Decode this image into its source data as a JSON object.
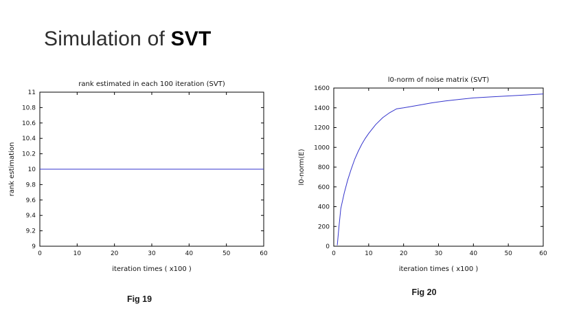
{
  "slide": {
    "title_regular": "Simulation of ",
    "title_bold": "SVT",
    "background": "#ffffff"
  },
  "figures": [
    {
      "caption": "Fig 19"
    },
    {
      "caption": "Fig 20"
    }
  ],
  "chart_data": [
    {
      "type": "line",
      "title": "rank estimated in each 100 iteration (SVT)",
      "xlabel": "iteration times ( x100 )",
      "ylabel": "rank estimation",
      "xlim": [
        0,
        60
      ],
      "ylim": [
        9,
        11
      ],
      "xticks": [
        0,
        10,
        20,
        30,
        40,
        50,
        60
      ],
      "xtick_labels": [
        "0",
        "10",
        "20",
        "30",
        "40",
        "50",
        "60"
      ],
      "yticks": [
        9,
        9.2,
        9.4,
        9.6,
        9.8,
        10,
        10.2,
        10.4,
        10.6,
        10.8,
        11
      ],
      "ytick_labels": [
        "9",
        "9.2",
        "9.4",
        "9.6",
        "9.8",
        "10",
        "10.2",
        "10.4",
        "10.6",
        "10.8",
        "11"
      ],
      "grid": false,
      "legend": null,
      "line_color": "#3333cc",
      "series": [
        {
          "name": "rank estimation",
          "x": [
            0,
            60
          ],
          "y": [
            10,
            10
          ]
        }
      ]
    },
    {
      "type": "line",
      "title": "l0-norm of noise matrix (SVT)",
      "xlabel": "iteration times ( x100 )",
      "ylabel": "l0-norm(E)",
      "xlim": [
        0,
        60
      ],
      "ylim": [
        0,
        1600
      ],
      "xticks": [
        0,
        10,
        20,
        30,
        40,
        50,
        60
      ],
      "xtick_labels": [
        "0",
        "10",
        "20",
        "30",
        "40",
        "50",
        "60"
      ],
      "yticks": [
        0,
        200,
        400,
        600,
        800,
        1000,
        1200,
        1400,
        1600
      ],
      "ytick_labels": [
        "0",
        "200",
        "400",
        "600",
        "800",
        "1000",
        "1200",
        "1400",
        "1600"
      ],
      "grid": false,
      "legend": null,
      "line_color": "#3333cc",
      "series": [
        {
          "name": "l0-norm(E)",
          "x": [
            1,
            1.5,
            2,
            3,
            4,
            5,
            6,
            7,
            8,
            9,
            10,
            12,
            14,
            16,
            18,
            20,
            24,
            28,
            32,
            36,
            40,
            45,
            50,
            55,
            60
          ],
          "y": [
            10,
            200,
            380,
            540,
            670,
            780,
            880,
            960,
            1030,
            1090,
            1140,
            1230,
            1300,
            1350,
            1390,
            1400,
            1425,
            1450,
            1470,
            1485,
            1500,
            1510,
            1520,
            1530,
            1540
          ]
        }
      ]
    }
  ]
}
